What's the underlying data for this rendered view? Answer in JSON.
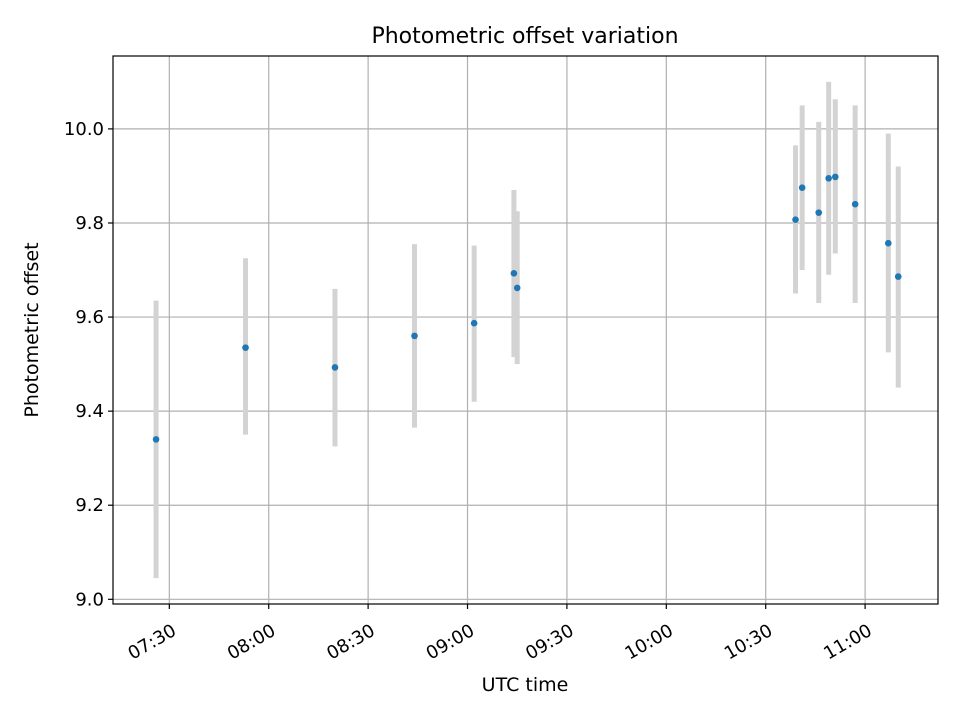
{
  "chart_data": {
    "type": "scatter",
    "title": "Photometric offset variation",
    "xlabel": "UTC time",
    "ylabel": "Photometric offset",
    "xlim": [
      "07:13",
      "11:22"
    ],
    "ylim": [
      8.99,
      10.155
    ],
    "x_ticks": [
      "07:30",
      "08:00",
      "08:30",
      "09:00",
      "09:30",
      "10:00",
      "10:30",
      "11:00"
    ],
    "y_ticks": [
      "9.0",
      "9.2",
      "9.4",
      "9.6",
      "9.8",
      "10.0"
    ],
    "grid": true,
    "colors": {
      "point": "#1f77b4",
      "errorbar": "#d3d3d3",
      "grid": "#b0b0b0"
    },
    "points": [
      {
        "x": "07:26",
        "y": 9.34,
        "low": 9.045,
        "high": 9.635
      },
      {
        "x": "07:53",
        "y": 9.535,
        "low": 9.35,
        "high": 9.725
      },
      {
        "x": "08:20",
        "y": 9.493,
        "low": 9.325,
        "high": 9.66
      },
      {
        "x": "08:44",
        "y": 9.56,
        "low": 9.365,
        "high": 9.755
      },
      {
        "x": "09:02",
        "y": 9.587,
        "low": 9.42,
        "high": 9.752
      },
      {
        "x": "09:14",
        "y": 9.693,
        "low": 9.515,
        "high": 9.87
      },
      {
        "x": "09:15",
        "y": 9.662,
        "low": 9.5,
        "high": 9.825
      },
      {
        "x": "10:39",
        "y": 9.807,
        "low": 9.65,
        "high": 9.965
      },
      {
        "x": "10:41",
        "y": 9.875,
        "low": 9.7,
        "high": 10.05
      },
      {
        "x": "10:46",
        "y": 9.822,
        "low": 9.63,
        "high": 10.015
      },
      {
        "x": "10:49",
        "y": 9.895,
        "low": 9.69,
        "high": 10.1
      },
      {
        "x": "10:51",
        "y": 9.898,
        "low": 9.735,
        "high": 10.063
      },
      {
        "x": "10:57",
        "y": 9.84,
        "low": 9.63,
        "high": 10.05
      },
      {
        "x": "11:07",
        "y": 9.757,
        "low": 9.525,
        "high": 9.99
      },
      {
        "x": "11:10",
        "y": 9.686,
        "low": 9.45,
        "high": 9.92
      }
    ]
  }
}
